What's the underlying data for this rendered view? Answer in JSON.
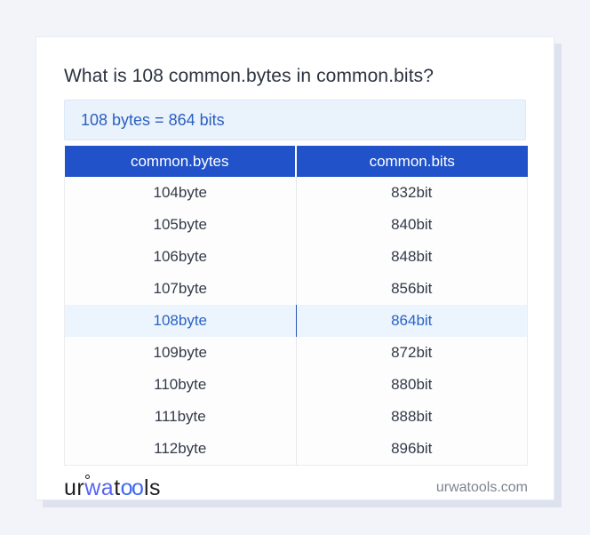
{
  "title": "What is 108 common.bytes in common.bits?",
  "result_box": {
    "text": "108 bytes = 864 bits"
  },
  "table": {
    "columns": [
      {
        "label": "common.bytes"
      },
      {
        "label": "common.bits"
      }
    ],
    "rows": [
      {
        "bytes": "104byte",
        "bits": "832bit",
        "highlighted": false
      },
      {
        "bytes": "105byte",
        "bits": "840bit",
        "highlighted": false
      },
      {
        "bytes": "106byte",
        "bits": "848bit",
        "highlighted": false
      },
      {
        "bytes": "107byte",
        "bits": "856bit",
        "highlighted": false
      },
      {
        "bytes": "108byte",
        "bits": "864bit",
        "highlighted": true
      },
      {
        "bytes": "109byte",
        "bits": "872bit",
        "highlighted": false
      },
      {
        "bytes": "110byte",
        "bits": "880bit",
        "highlighted": false
      },
      {
        "bytes": "111byte",
        "bits": "888bit",
        "highlighted": false
      },
      {
        "bytes": "112byte",
        "bits": "896bit",
        "highlighted": false
      }
    ],
    "highlighted_row_index": 4
  },
  "footer": {
    "logo": {
      "part_ur": "ur",
      "part_wa": "wa",
      "part_t": "t",
      "part_oo": "oo",
      "part_ls": "ls"
    },
    "domain": "urwatools.com"
  },
  "colors": {
    "page_background": "#f3f4f9",
    "card_background": "#ffffff",
    "card_shadow": "#dde2ee",
    "header_blue": "#2152c9",
    "header_text": "#ffffff",
    "result_box_bg": "#eaf3fc",
    "result_box_border": "#d9e8f8",
    "result_text": "#2b5fc0",
    "row_text": "#343b47",
    "highlight_row_bg": "#ecf5fd",
    "highlight_row_text": "#2a62c4",
    "highlight_divider": "#2b55b0",
    "title_text": "#2b3340",
    "domain_text": "#7d8491",
    "logo_wa": "#5865f2",
    "logo_oo": "#4169f0"
  }
}
